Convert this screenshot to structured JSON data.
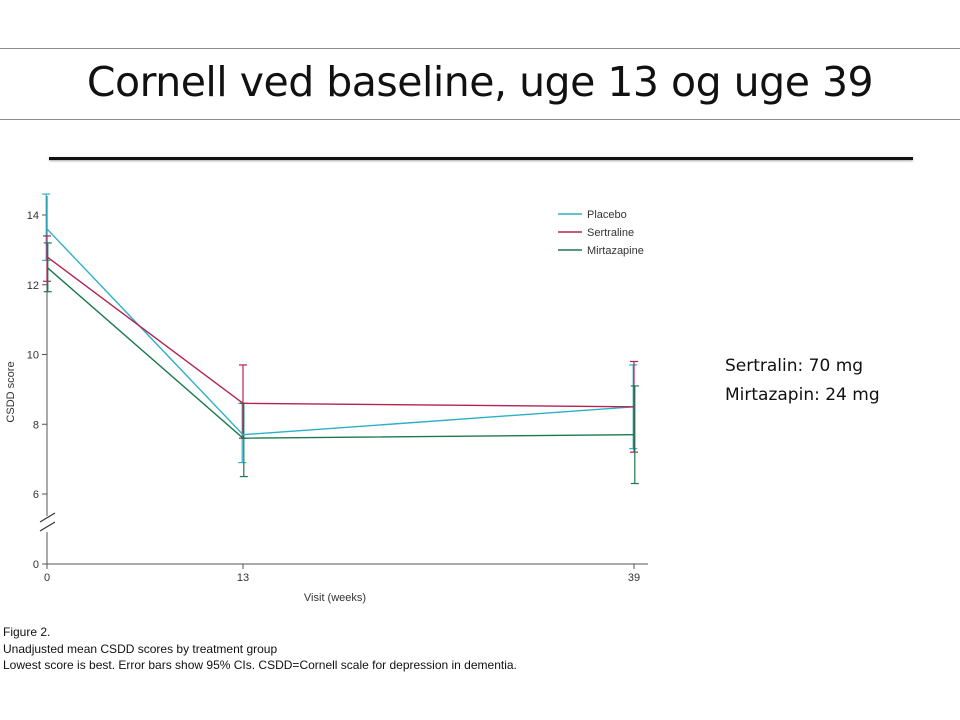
{
  "slide": {
    "title": "Cornell ved baseline, uge 13 og uge 39",
    "dose_notes": [
      "Sertralin: 70 mg",
      "Mirtazapin: 24 mg"
    ],
    "caption_lines": [
      "Figure 2.",
      "Unadjusted mean CSDD scores by treatment group",
      "Lowest score is best. Error bars show 95% CIs. CSDD=Cornell scale for depression in dementia."
    ]
  },
  "chart_data": {
    "type": "line",
    "title": "",
    "xlabel": "Visit (weeks)",
    "ylabel": "CSDD score",
    "x": [
      0,
      13,
      39
    ],
    "x_tick_labels": [
      "0",
      "13",
      "39"
    ],
    "y_ticks": [
      0,
      6,
      8,
      10,
      12,
      14
    ],
    "y_axis_break": "between 0 and 6",
    "ylim": [
      0,
      14.6
    ],
    "legend_position": "top-right",
    "error_bars": "95% CI",
    "series": [
      {
        "name": "Placebo",
        "color": "#2bb0c9",
        "values": [
          13.6,
          7.7,
          8.5
        ],
        "ci_low": [
          12.7,
          6.9,
          7.3
        ],
        "ci_high": [
          14.6,
          8.6,
          9.7
        ]
      },
      {
        "name": "Sertraline",
        "color": "#b5234f",
        "values": [
          12.8,
          8.6,
          8.5
        ],
        "ci_low": [
          12.1,
          7.6,
          7.2
        ],
        "ci_high": [
          13.4,
          9.7,
          9.8
        ]
      },
      {
        "name": "Mirtazapine",
        "color": "#1a7a4e",
        "values": [
          12.5,
          7.6,
          7.7
        ],
        "ci_low": [
          11.8,
          6.5,
          6.3
        ],
        "ci_high": [
          13.2,
          8.6,
          9.1
        ]
      }
    ]
  }
}
